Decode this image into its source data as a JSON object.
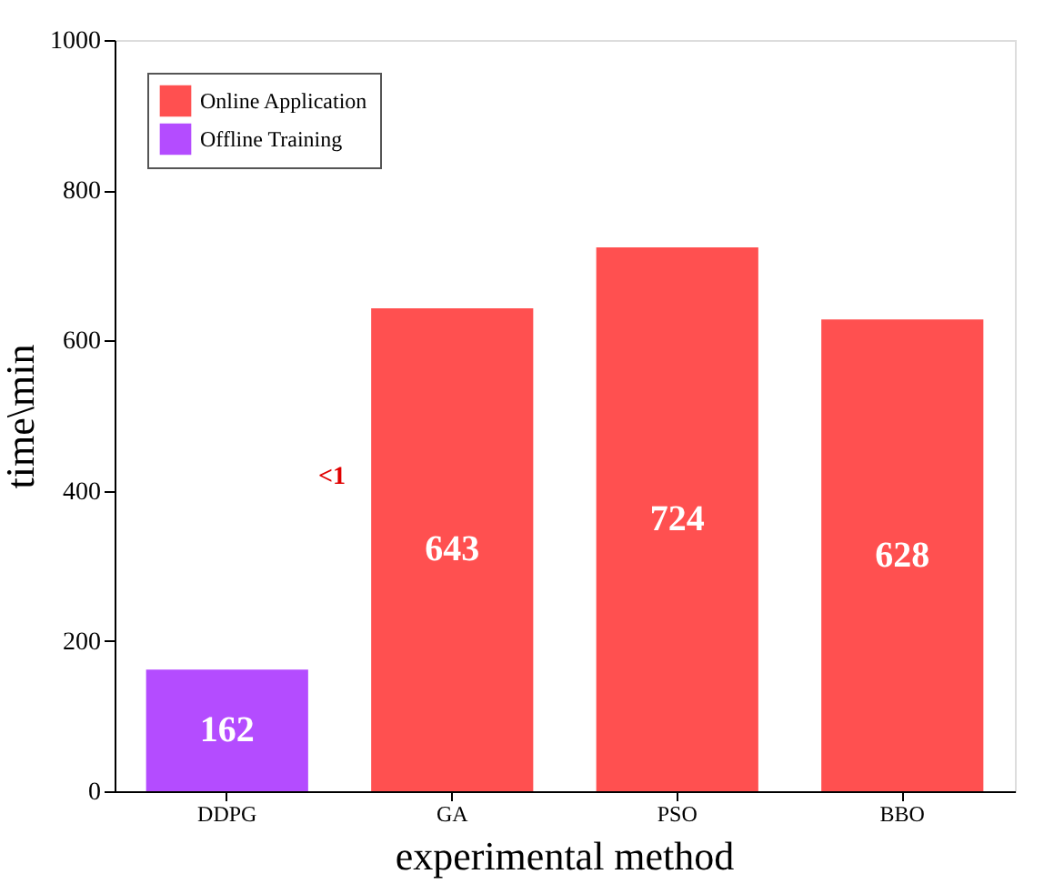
{
  "chart_data": {
    "type": "bar",
    "xlabel": "experimental method",
    "ylabel": "time\\min",
    "categories": [
      "DDPG",
      "GA",
      "PSO",
      "BBO"
    ],
    "series": [
      {
        "name": "Offline Training",
        "color": "#b44cff",
        "values": [
          162,
          null,
          null,
          null
        ],
        "value_labels": [
          "162",
          null,
          null,
          null
        ]
      },
      {
        "name": "Online Application",
        "color": "#ff5050",
        "values": [
          null,
          643,
          724,
          628
        ],
        "value_labels": [
          null,
          "643",
          "724",
          "628"
        ]
      }
    ],
    "annotations": [
      "<1"
    ],
    "ylim": [
      0,
      1000
    ],
    "yticks": [
      0,
      200,
      400,
      600,
      800,
      1000
    ],
    "grid": false,
    "legend": "top left"
  }
}
